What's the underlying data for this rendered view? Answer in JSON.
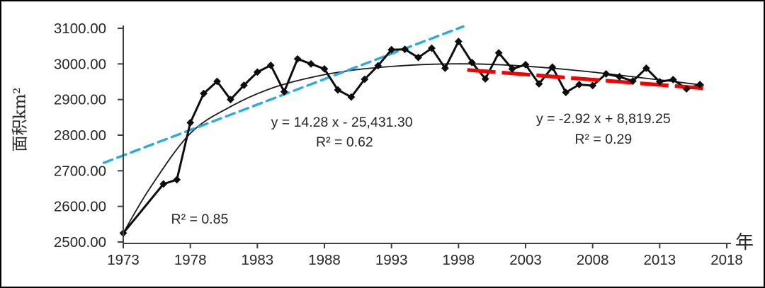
{
  "chart_data": {
    "type": "line",
    "title": "",
    "xlabel": "年",
    "ylabel": "面积km²",
    "xlim": [
      1971.5,
      2018.5
    ],
    "ylim": [
      2500,
      3100
    ],
    "grid": false,
    "legend": "none",
    "x_ticks": [
      {
        "value": 1973,
        "label": "1973"
      },
      {
        "value": 1978,
        "label": "1978"
      },
      {
        "value": 1983,
        "label": "1983"
      },
      {
        "value": 1988,
        "label": "1988"
      },
      {
        "value": 1993,
        "label": "1993"
      },
      {
        "value": 1998,
        "label": "1998"
      },
      {
        "value": 2003,
        "label": "2003"
      },
      {
        "value": 2008,
        "label": "2008"
      },
      {
        "value": 2013,
        "label": "2013"
      },
      {
        "value": 2018,
        "label": "2018"
      }
    ],
    "y_ticks": [
      {
        "value": 2500,
        "label": "2500.00"
      },
      {
        "value": 2600,
        "label": "2600.00"
      },
      {
        "value": 2700,
        "label": "2700.00"
      },
      {
        "value": 2800,
        "label": "2800.00"
      },
      {
        "value": 2900,
        "label": "2900.00"
      },
      {
        "value": 3000,
        "label": "3000.00"
      },
      {
        "value": 3100,
        "label": "3100.00"
      }
    ],
    "series": [
      {
        "name": "lake-area-observed",
        "color": "#0d0d0d",
        "marker": "diamond",
        "style": "solid",
        "points": [
          [
            1973,
            2525
          ],
          [
            1976,
            2663
          ],
          [
            1977,
            2675
          ],
          [
            1978,
            2835
          ],
          [
            1979,
            2917
          ],
          [
            1980,
            2951
          ],
          [
            1981,
            2900
          ],
          [
            1982,
            2940
          ],
          [
            1983,
            2977
          ],
          [
            1984,
            2996
          ],
          [
            1985,
            2922
          ],
          [
            1986,
            3014
          ],
          [
            1987,
            3000
          ],
          [
            1988,
            2986
          ],
          [
            1989,
            2927
          ],
          [
            1990,
            2907
          ],
          [
            1991,
            2957
          ],
          [
            1992,
            2995
          ],
          [
            1993,
            3040
          ],
          [
            1994,
            3041
          ],
          [
            1995,
            3018
          ],
          [
            1996,
            3044
          ],
          [
            1997,
            2988
          ],
          [
            1998,
            3063
          ],
          [
            1999,
            3004
          ],
          [
            2000,
            2958
          ],
          [
            2001,
            3031
          ],
          [
            2002,
            2986
          ],
          [
            2003,
            2998
          ],
          [
            2004,
            2944
          ],
          [
            2005,
            2991
          ],
          [
            2006,
            2920
          ],
          [
            2007,
            2942
          ],
          [
            2008,
            2939
          ],
          [
            2009,
            2972
          ],
          [
            2010,
            2964
          ],
          [
            2011,
            2952
          ],
          [
            2012,
            2988
          ],
          [
            2013,
            2950
          ],
          [
            2014,
            2956
          ],
          [
            2015,
            2930
          ],
          [
            2016,
            2942
          ]
        ]
      }
    ],
    "trendlines": [
      {
        "name": "blue-linear-trend-1973-1998",
        "color": "#29abe2",
        "style": "dashed",
        "width": 3.4,
        "dash": "13 7.5",
        "x_start": 1971.55,
        "x_end": 1998.35,
        "slope": 14.28,
        "intercept": -25431.3
      },
      {
        "name": "red-linear-trend-1999-2016",
        "color": "#f30000",
        "style": "dashed-thick",
        "width": 5.2,
        "dash": "40 9",
        "x_start": 1998.65,
        "x_end": 2016.45,
        "slope": -2.92,
        "intercept": 8819.25
      },
      {
        "name": "poly-trend-curve",
        "color": "#1a1a1a",
        "style": "solid-thin",
        "width": 1.8,
        "points": [
          [
            1973,
            2525
          ],
          [
            1975,
            2652
          ],
          [
            1978,
            2805
          ],
          [
            1981,
            2880
          ],
          [
            1984,
            2931
          ],
          [
            1987,
            2962
          ],
          [
            1990,
            2982
          ],
          [
            1993,
            2993
          ],
          [
            1996,
            2999
          ],
          [
            1999,
            3000
          ],
          [
            2002,
            2996
          ],
          [
            2005,
            2988
          ],
          [
            2008,
            2977
          ],
          [
            2011,
            2964
          ],
          [
            2013.5,
            2953
          ],
          [
            2016.3,
            2940
          ]
        ]
      }
    ],
    "annotations": [
      {
        "name": "blue-trend-equation",
        "text": "y = 14.28 x - 25,431.30",
        "x": 1989.3,
        "y": 2838
      },
      {
        "name": "blue-trend-r2",
        "text": "R² = 0.62",
        "x": 1989.5,
        "y": 2782
      },
      {
        "name": "red-trend-equation",
        "text": "y = -2.92 x + 8,819.25",
        "x": 2008.8,
        "y": 2848
      },
      {
        "name": "red-trend-r2",
        "text": "R² = 0.29",
        "x": 2008.8,
        "y": 2790
      },
      {
        "name": "poly-trend-r2",
        "text": "R² = 0.85",
        "x": 1978.7,
        "y": 2566
      }
    ],
    "text_color": "#262626",
    "axis_color": "#404040"
  }
}
